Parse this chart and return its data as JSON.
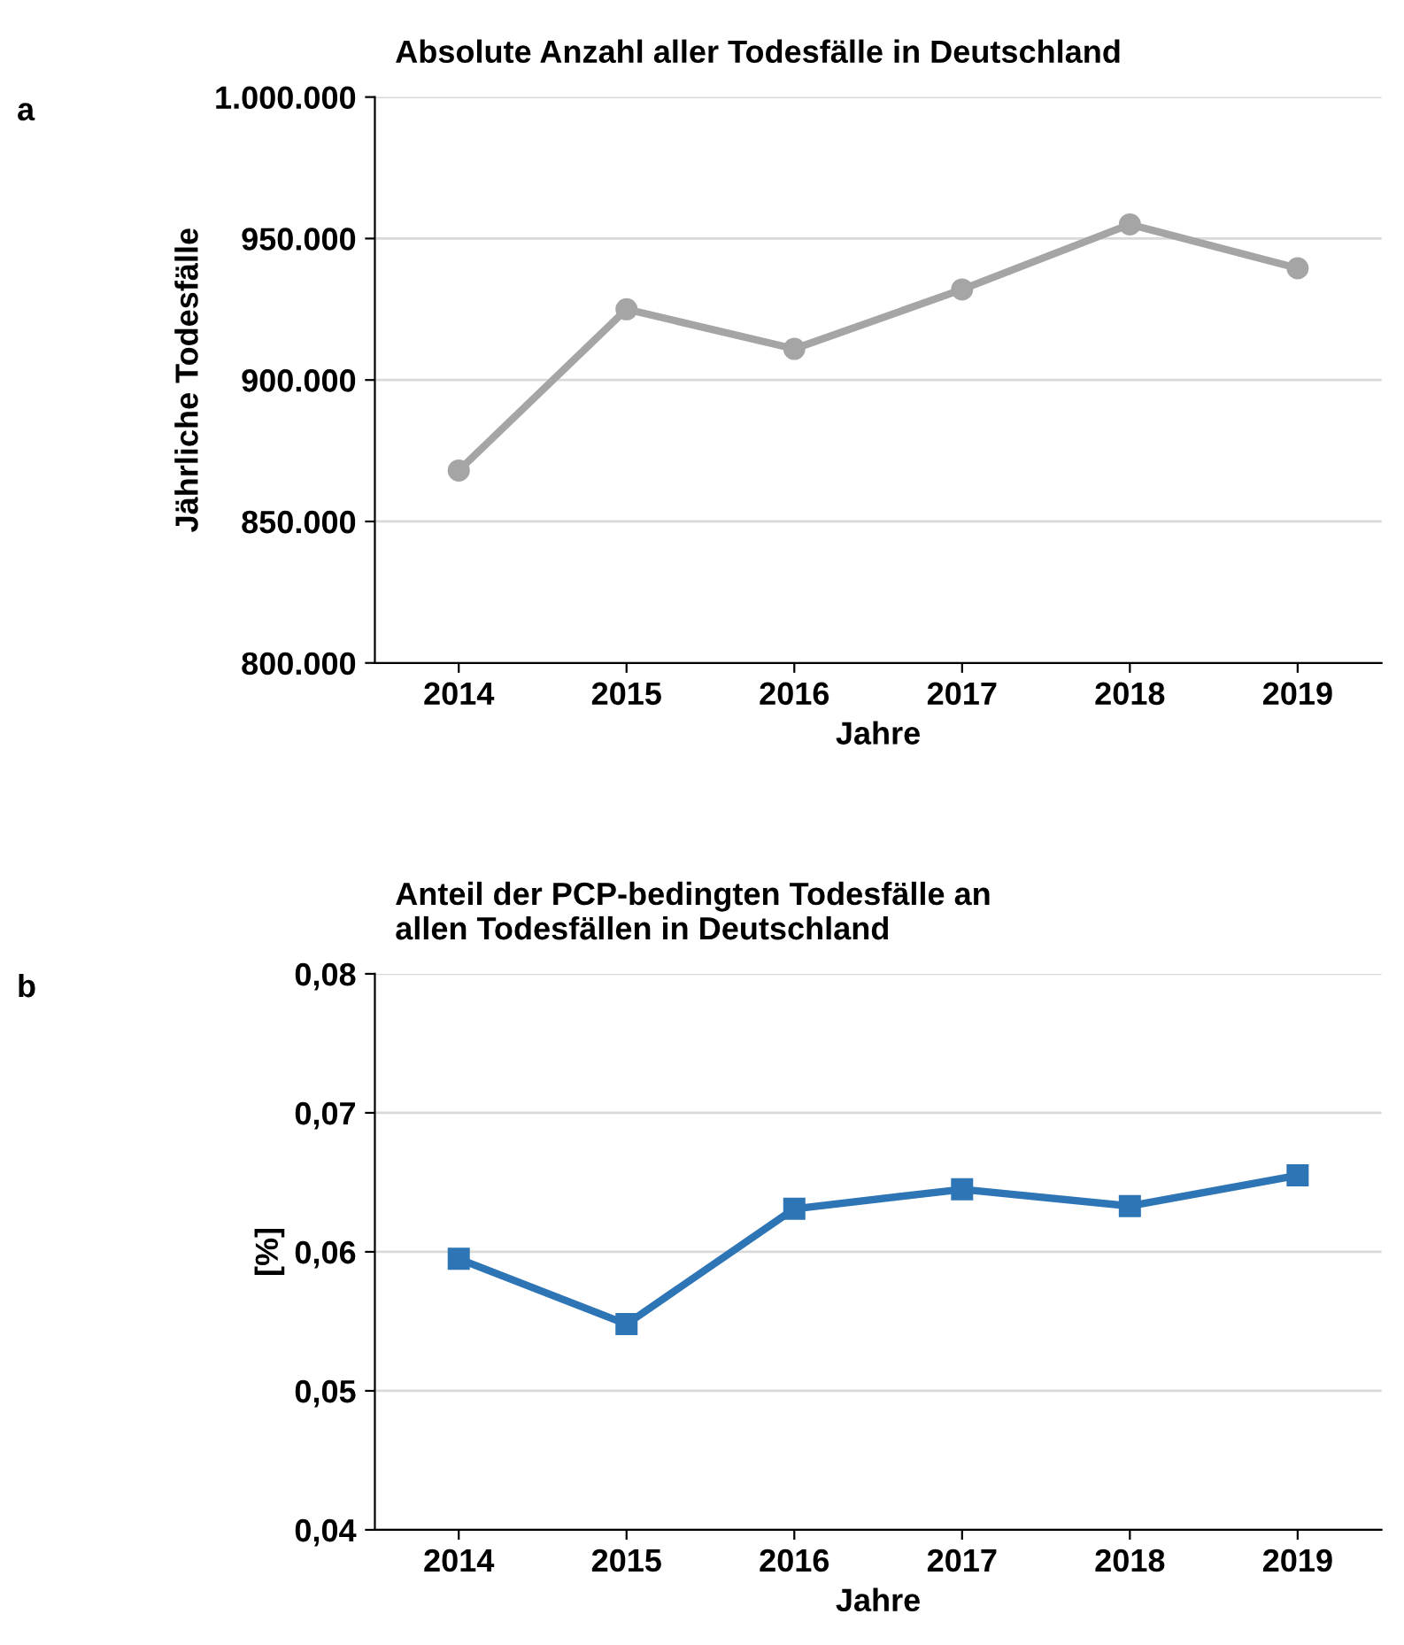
{
  "chart_data": [
    {
      "type": "line",
      "title": "Absolute Anzahl aller Todesfälle in Deutschland",
      "xlabel": "Jahre",
      "ylabel": "Jährliche Todesfälle",
      "annotations": [
        "a"
      ],
      "categories": [
        "2014",
        "2015",
        "2016",
        "2017",
        "2018",
        "2019"
      ],
      "series": [
        {
          "color": "#a5a5a5",
          "values": [
            868000,
            925000,
            911000,
            932000,
            955000,
            939500
          ]
        }
      ],
      "ylim": [
        800000,
        1000000
      ],
      "yticks": [
        {
          "value": 800000,
          "label": "800.000"
        },
        {
          "value": 850000,
          "label": "850.000"
        },
        {
          "value": 900000,
          "label": "900.000"
        },
        {
          "value": 950000,
          "label": "950.000"
        },
        {
          "value": 1000000,
          "label": "1.000.000"
        }
      ],
      "grid": "y",
      "marker": "circle",
      "line_style": "solid"
    },
    {
      "type": "line",
      "title": "Anteil der PCP-bedingten Todesfälle an\nallen Todesfällen in Deutschland",
      "xlabel": "Jahre",
      "ylabel": "[%]",
      "annotations": [
        "b"
      ],
      "categories": [
        "2014",
        "2015",
        "2016",
        "2017",
        "2018",
        "2019"
      ],
      "series": [
        {
          "color": "#2e75b6",
          "values": [
            0.0595,
            0.0548,
            0.0631,
            0.0645,
            0.0633,
            0.0655
          ]
        }
      ],
      "ylim": [
        0.04,
        0.08
      ],
      "yticks": [
        {
          "value": 0.04,
          "label": "0,04"
        },
        {
          "value": 0.05,
          "label": "0,05"
        },
        {
          "value": 0.06,
          "label": "0,06"
        },
        {
          "value": 0.07,
          "label": "0,07"
        },
        {
          "value": 0.08,
          "label": "0,08"
        }
      ],
      "grid": "y",
      "marker": "square",
      "line_style": "solid"
    }
  ]
}
